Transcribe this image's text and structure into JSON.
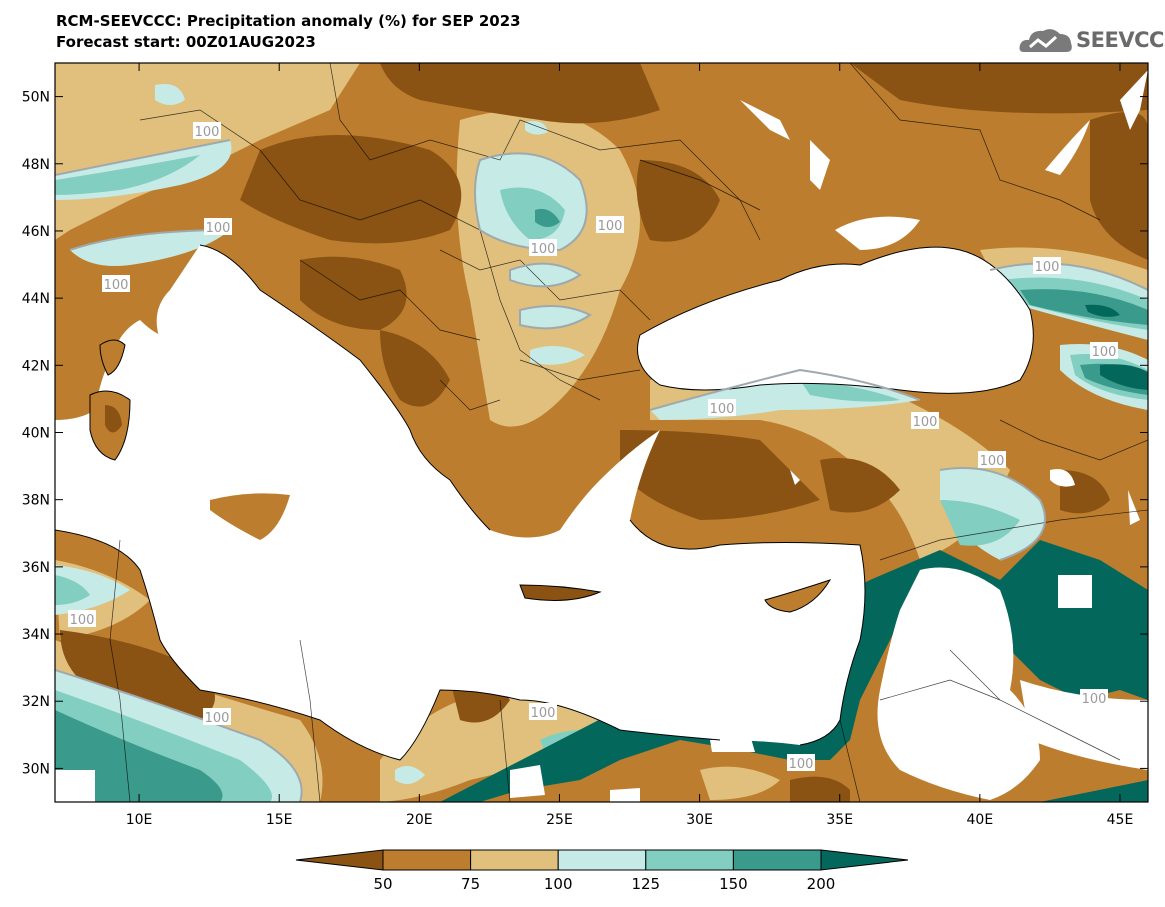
{
  "title": {
    "line1": "RCM-SEEVCCC: Precipitation anomaly (%) for SEP 2023",
    "line2": "Forecast start: 00Z01AUG2023"
  },
  "logo": {
    "text": "SEEVCCC",
    "icon": "cloud-logo-icon"
  },
  "map": {
    "type": "filled-contour-map",
    "lon_range": [
      7,
      46
    ],
    "lat_range": [
      29,
      51
    ],
    "lon_ticks": [
      "10E",
      "15E",
      "20E",
      "25E",
      "30E",
      "35E",
      "40E",
      "45E"
    ],
    "lat_ticks": [
      "30N",
      "32N",
      "34N",
      "36N",
      "38N",
      "40N",
      "42N",
      "44N",
      "46N",
      "48N",
      "50N"
    ],
    "contour_label": "100",
    "colors": {
      "below_50": "#8a5314",
      "50_75": "#bc7e2e",
      "75_100": "#e1c07d",
      "100_125": "#c6ebe6",
      "125_150": "#82cec0",
      "150_200": "#3a9a8c",
      "above_200": "#04675c",
      "sea": "#ffffff"
    }
  },
  "colorbar": {
    "levels": [
      "50",
      "75",
      "100",
      "125",
      "150",
      "200"
    ],
    "colors": [
      "#8a5314",
      "#bc7e2e",
      "#e1c07d",
      "#c6ebe6",
      "#82cec0",
      "#3a9a8c",
      "#04675c"
    ]
  }
}
